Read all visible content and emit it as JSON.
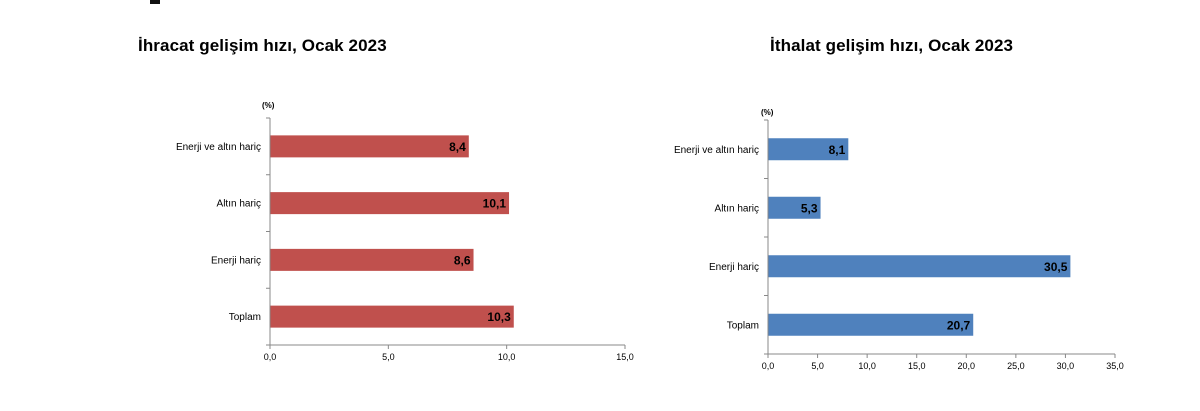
{
  "chart_data": [
    {
      "type": "bar",
      "orientation": "horizontal",
      "title": "İhracat gelişim hızı, Ocak 2023",
      "unit_label": "(%)",
      "categories": [
        "Enerji ve altın hariç",
        "Altın hariç",
        "Enerji hariç",
        "Toplam"
      ],
      "values": [
        8.4,
        10.1,
        8.6,
        10.3
      ],
      "value_labels": [
        "8,4",
        "10,1",
        "8,6",
        "10,3"
      ],
      "xlim": [
        0,
        15
      ],
      "xticks": [
        0,
        5,
        10,
        15
      ],
      "xtick_labels": [
        "0,0",
        "5,0",
        "10,0",
        "15,0"
      ],
      "color": "#C0504D",
      "grid": false
    },
    {
      "type": "bar",
      "orientation": "horizontal",
      "title": "İthalat gelişim hızı, Ocak 2023",
      "unit_label": "(%)",
      "categories": [
        "Enerji ve altın hariç",
        "Altın hariç",
        "Enerji hariç",
        "Toplam"
      ],
      "values": [
        8.1,
        5.3,
        30.5,
        20.7
      ],
      "value_labels": [
        "8,1",
        "5,3",
        "30,5",
        "20,7"
      ],
      "xlim": [
        0,
        35
      ],
      "xticks": [
        0,
        5,
        10,
        15,
        20,
        25,
        30,
        35
      ],
      "xtick_labels": [
        "0,0",
        "5,0",
        "10,0",
        "15,0",
        "20,0",
        "25,0",
        "30,0",
        "35,0"
      ],
      "color": "#4F81BD",
      "grid": false
    }
  ]
}
